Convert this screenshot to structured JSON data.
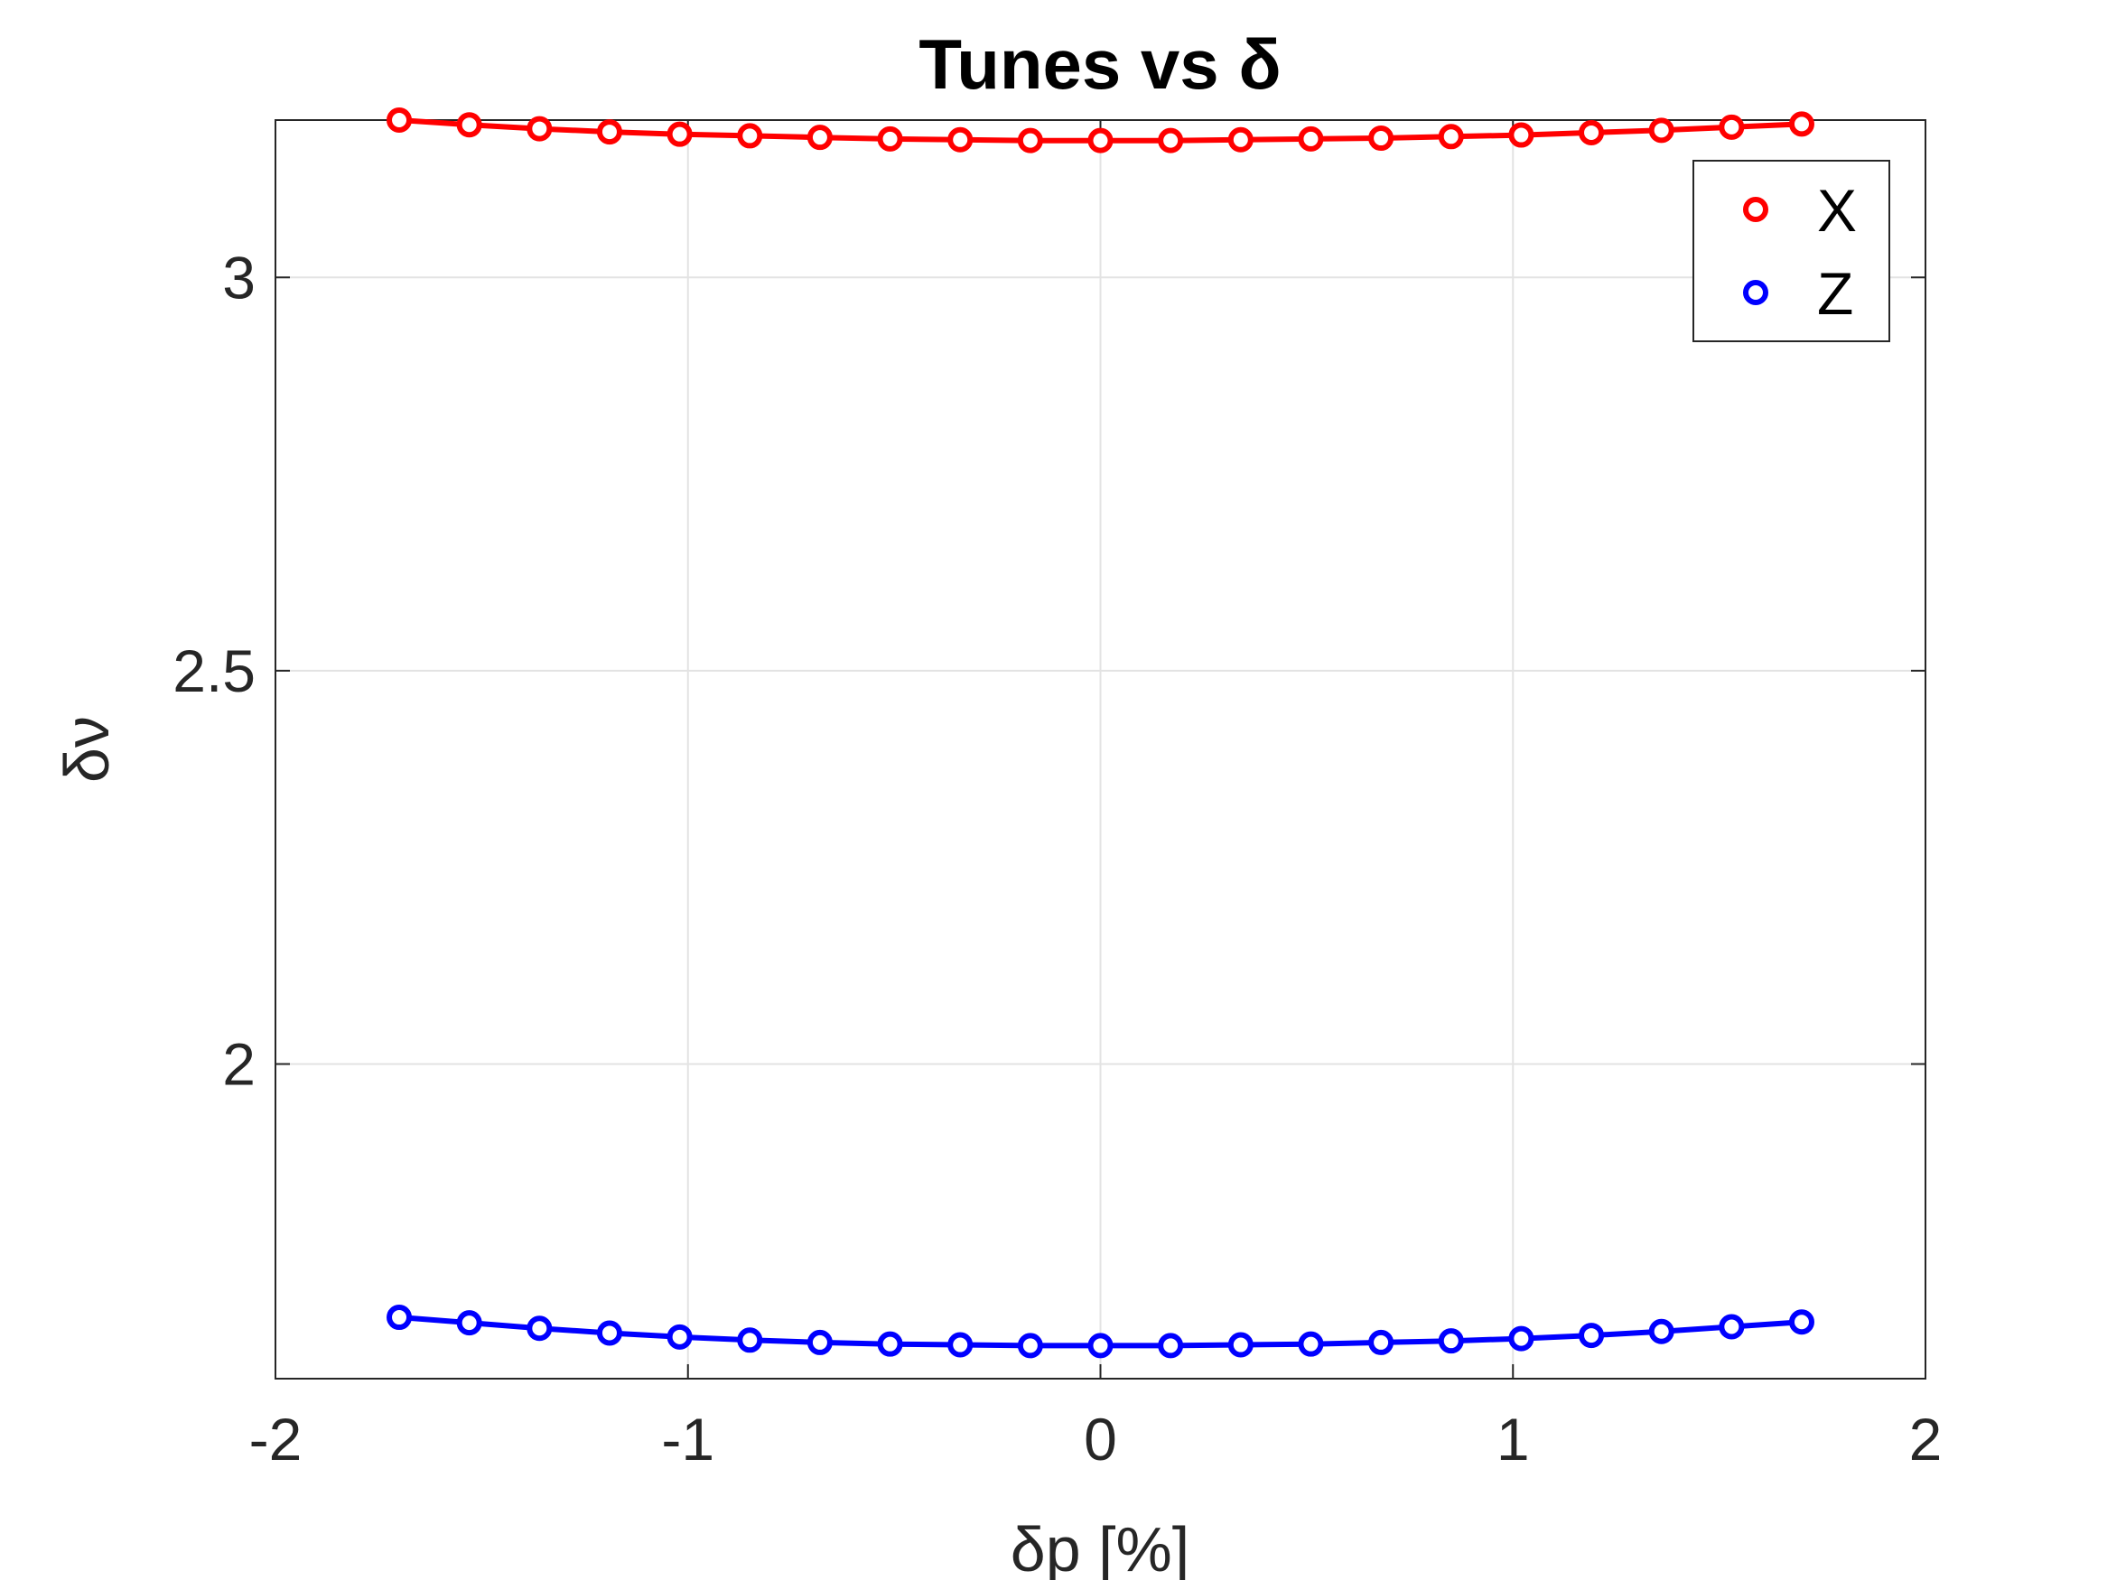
{
  "chart_data": {
    "type": "line",
    "title": "Tunes vs δ",
    "xlabel": "δp [%]",
    "ylabel": "δν",
    "xlim": [
      -2,
      2
    ],
    "ylim": [
      1.6,
      3.2
    ],
    "xticks": [
      "-2",
      "-1",
      "0",
      "1",
      "2"
    ],
    "yticks": [
      "2",
      "2.5",
      "3"
    ],
    "grid": true,
    "legend_position": "top-right",
    "x": [
      -1.7,
      -1.53,
      -1.36,
      -1.19,
      -1.02,
      -0.85,
      -0.68,
      -0.51,
      -0.34,
      -0.17,
      0,
      0.17,
      0.34,
      0.51,
      0.68,
      0.85,
      1.02,
      1.19,
      1.36,
      1.53,
      1.7
    ],
    "series": [
      {
        "name": "X",
        "color": "#ff0000",
        "marker": "circle",
        "values": [
          3.2,
          3.194,
          3.189,
          3.185,
          3.182,
          3.18,
          3.178,
          3.176,
          3.175,
          3.174,
          3.174,
          3.174,
          3.175,
          3.176,
          3.177,
          3.179,
          3.181,
          3.184,
          3.187,
          3.191,
          3.195
        ]
      },
      {
        "name": "Z",
        "color": "#0000ff",
        "marker": "circle",
        "values": [
          1.678,
          1.671,
          1.664,
          1.658,
          1.653,
          1.649,
          1.646,
          1.644,
          1.643,
          1.642,
          1.642,
          1.642,
          1.643,
          1.644,
          1.646,
          1.648,
          1.651,
          1.655,
          1.66,
          1.666,
          1.672
        ]
      }
    ]
  }
}
